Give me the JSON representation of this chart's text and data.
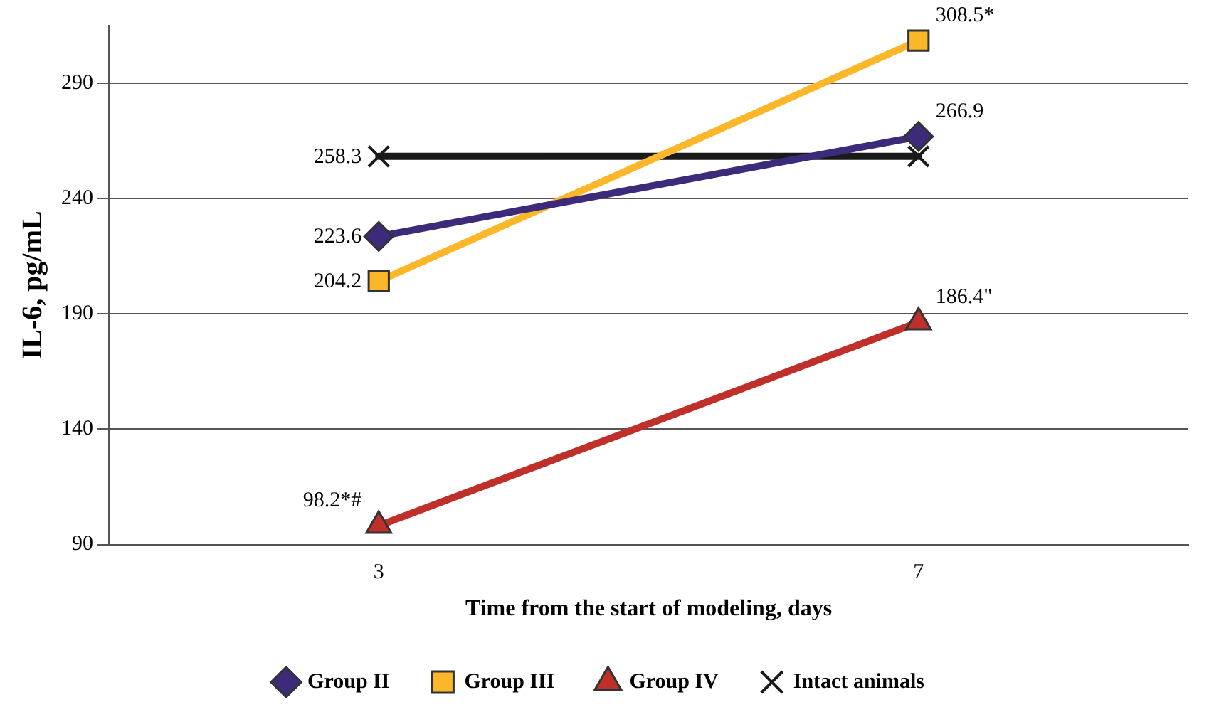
{
  "chart_data": {
    "type": "line",
    "xlabel": "Time from the start of modeling, days",
    "ylabel": "IL-6, pg/mL",
    "categories": [
      "3",
      "7"
    ],
    "ylim": [
      90,
      315
    ],
    "yticks": [
      90,
      140,
      190,
      240,
      290
    ],
    "grid": "y",
    "legend": "bottom",
    "line_style": "solid",
    "series": [
      {
        "name": "Group II",
        "color": "#3d2a7a",
        "marker": "diamond",
        "values": [
          223.6,
          266.9
        ],
        "value_labels": [
          "223.6",
          "266.9"
        ]
      },
      {
        "name": "Group III",
        "color": "#fbb72a",
        "marker": "square",
        "values": [
          204.2,
          308.5
        ],
        "value_labels": [
          "204.2",
          "308.5*"
        ]
      },
      {
        "name": "Group IV",
        "color": "#c0302a",
        "marker": "triangle",
        "values": [
          98.2,
          186.4
        ],
        "value_labels": [
          "98.2*#",
          "186.4\""
        ]
      },
      {
        "name": "Intact animals",
        "color": "#1a1a1a",
        "marker": "cross",
        "values": [
          258.3,
          258.3
        ],
        "value_labels": [
          "258.3",
          null
        ]
      }
    ]
  }
}
